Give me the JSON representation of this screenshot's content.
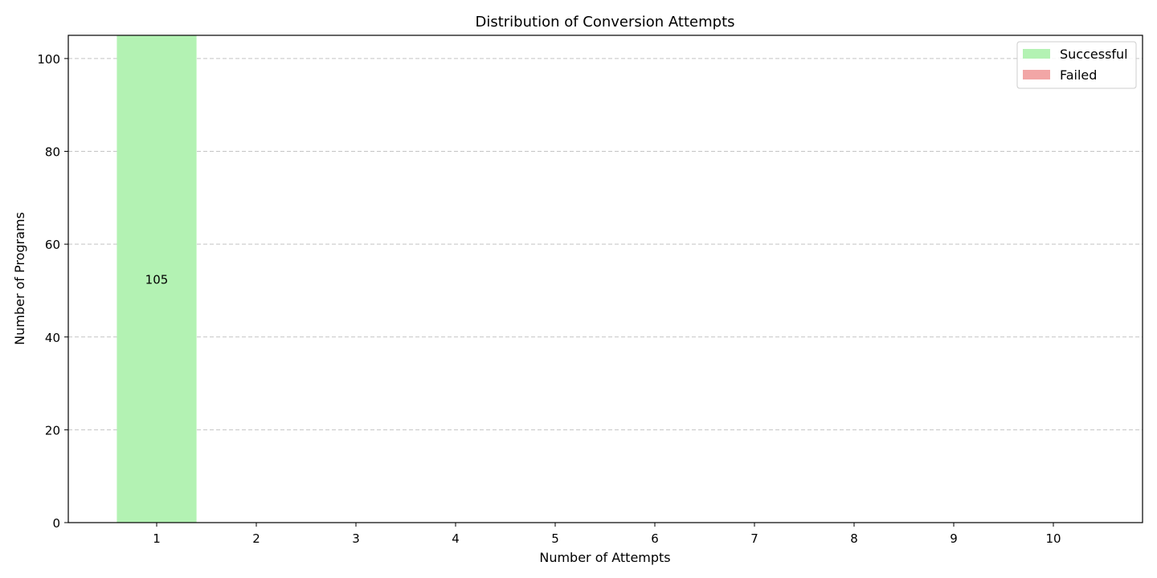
{
  "chart_data": {
    "type": "bar",
    "title": "Distribution of Conversion Attempts",
    "xlabel": "Number of Attempts",
    "ylabel": "Number of Programs",
    "categories": [
      "1",
      "2",
      "3",
      "4",
      "5",
      "6",
      "7",
      "8",
      "9",
      "10"
    ],
    "series": [
      {
        "name": "Successful",
        "color": "#b3f2b3",
        "values": [
          105,
          0,
          0,
          0,
          0,
          0,
          0,
          0,
          0,
          0
        ]
      },
      {
        "name": "Failed",
        "color": "#f2a6a6",
        "values": [
          0,
          0,
          0,
          0,
          0,
          0,
          0,
          0,
          0,
          0
        ]
      }
    ],
    "stacked": true,
    "data_labels": [
      {
        "category": "1",
        "text": "105"
      }
    ],
    "ylim": [
      0,
      105
    ],
    "yticks": [
      0,
      20,
      40,
      60,
      80,
      100
    ],
    "grid": {
      "axis": "y",
      "style": "dashed"
    },
    "legend": {
      "position": "top-right"
    }
  }
}
